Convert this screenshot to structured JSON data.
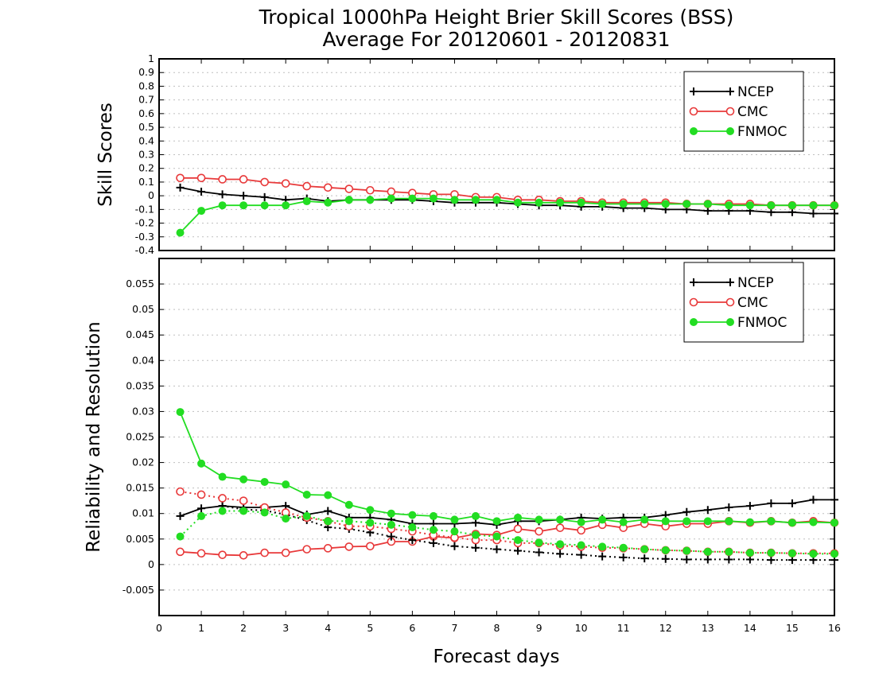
{
  "figure": {
    "title_line1": "Tropical 1000hPa Height Brier Skill Scores (BSS)",
    "title_line2": "Average For 20120601 - 20120831",
    "xlabel": "Forecast days"
  },
  "chart_data": [
    {
      "type": "line",
      "ylabel": "Skill Scores",
      "xlabel": "",
      "xlim": [
        0,
        16
      ],
      "ylim": [
        -0.4,
        1
      ],
      "x_ticks": [
        0,
        1,
        2,
        3,
        4,
        5,
        6,
        7,
        8,
        9,
        10,
        11,
        12,
        13,
        14,
        15,
        16
      ],
      "y_ticks": [
        -0.4,
        -0.3,
        -0.2,
        -0.1,
        0,
        0.1,
        0.2,
        0.3,
        0.4,
        0.5,
        0.6,
        0.7,
        0.8,
        0.9,
        1
      ],
      "y_tick_labels": [
        "-0.4",
        "-0.3",
        "-0.2",
        "-0.1",
        "0",
        "0.1",
        "0.2",
        "0.3",
        "0.4",
        "0.5",
        "0.6",
        "0.7",
        "0.8",
        "0.9",
        "1"
      ],
      "grid": true,
      "legend_position": "top-right",
      "x": [
        0.5,
        1,
        1.5,
        2,
        2.5,
        3,
        3.5,
        4,
        4.5,
        5,
        5.5,
        6,
        6.5,
        7,
        7.5,
        8,
        8.5,
        9,
        9.5,
        10,
        10.5,
        11,
        11.5,
        12,
        12.5,
        13,
        13.5,
        14,
        14.5,
        15,
        15.5,
        16
      ],
      "series": [
        {
          "name": "NCEP",
          "color": "#000000",
          "marker": "plus",
          "style": "solid",
          "values": [
            0.06,
            0.03,
            0.01,
            0.0,
            -0.01,
            -0.03,
            -0.02,
            -0.04,
            -0.03,
            -0.03,
            -0.03,
            -0.03,
            -0.04,
            -0.05,
            -0.05,
            -0.05,
            -0.06,
            -0.07,
            -0.07,
            -0.08,
            -0.08,
            -0.09,
            -0.09,
            -0.1,
            -0.1,
            -0.11,
            -0.11,
            -0.11,
            -0.12,
            -0.12,
            -0.13,
            -0.13
          ]
        },
        {
          "name": "CMC",
          "color": "#e8393a",
          "marker": "open-circle",
          "style": "solid",
          "values": [
            0.13,
            0.13,
            0.12,
            0.12,
            0.1,
            0.09,
            0.07,
            0.06,
            0.05,
            0.04,
            0.03,
            0.02,
            0.01,
            0.01,
            -0.01,
            -0.01,
            -0.03,
            -0.03,
            -0.04,
            -0.04,
            -0.05,
            -0.05,
            -0.05,
            -0.05,
            -0.06,
            -0.06,
            -0.06,
            -0.06,
            -0.07,
            -0.07,
            -0.07,
            -0.07
          ]
        },
        {
          "name": "FNMOC",
          "color": "#22dd22",
          "marker": "filled-circle",
          "style": "solid",
          "values": [
            -0.27,
            -0.11,
            -0.07,
            -0.07,
            -0.07,
            -0.07,
            -0.04,
            -0.05,
            -0.03,
            -0.03,
            -0.02,
            -0.02,
            -0.02,
            -0.03,
            -0.03,
            -0.03,
            -0.05,
            -0.05,
            -0.05,
            -0.05,
            -0.06,
            -0.06,
            -0.06,
            -0.06,
            -0.06,
            -0.06,
            -0.07,
            -0.07,
            -0.07,
            -0.07,
            -0.07,
            -0.07
          ]
        }
      ]
    },
    {
      "type": "line",
      "ylabel": "Reliability and Resolution",
      "xlabel": "Forecast days",
      "xlim": [
        0,
        16
      ],
      "ylim": [
        -0.01,
        0.06
      ],
      "x_ticks": [
        0,
        1,
        2,
        3,
        4,
        5,
        6,
        7,
        8,
        9,
        10,
        11,
        12,
        13,
        14,
        15,
        16
      ],
      "y_ticks": [
        -0.005,
        0,
        0.005,
        0.01,
        0.015,
        0.02,
        0.025,
        0.03,
        0.035,
        0.04,
        0.045,
        0.05,
        0.055
      ],
      "y_tick_labels": [
        "-0.005",
        "0",
        "0.005",
        "0.01",
        "0.015",
        "0.02",
        "0.025",
        "0.03",
        "0.035",
        "0.04",
        "0.045",
        "0.05",
        "0.055"
      ],
      "grid": true,
      "legend_position": "top-right",
      "x": [
        0.5,
        1,
        1.5,
        2,
        2.5,
        3,
        3.5,
        4,
        4.5,
        5,
        5.5,
        6,
        6.5,
        7,
        7.5,
        8,
        8.5,
        9,
        9.5,
        10,
        10.5,
        11,
        11.5,
        12,
        12.5,
        13,
        13.5,
        14,
        14.5,
        15,
        15.5,
        16
      ],
      "series": [
        {
          "name": "NCEP",
          "color": "#000000",
          "marker": "plus",
          "style": "solid",
          "values": [
            0.0095,
            0.011,
            0.0115,
            0.0112,
            0.0112,
            0.0115,
            0.0098,
            0.0105,
            0.0092,
            0.0092,
            0.0088,
            0.008,
            0.008,
            0.008,
            0.0082,
            0.0078,
            0.0085,
            0.0085,
            0.0088,
            0.0092,
            0.009,
            0.0092,
            0.0092,
            0.0097,
            0.0103,
            0.0107,
            0.0112,
            0.0115,
            0.012,
            0.012,
            0.0127,
            0.0127
          ]
        },
        {
          "name": "CMC",
          "color": "#e8393a",
          "marker": "open-circle",
          "style": "solid",
          "values": [
            0.0025,
            0.0022,
            0.0019,
            0.0018,
            0.0023,
            0.0023,
            0.003,
            0.0032,
            0.0035,
            0.0036,
            0.0045,
            0.0045,
            0.0055,
            0.0052,
            0.006,
            0.0058,
            0.007,
            0.0065,
            0.0072,
            0.0067,
            0.0078,
            0.0072,
            0.008,
            0.0075,
            0.008,
            0.008,
            0.0085,
            0.0082,
            0.0085,
            0.0082,
            0.0085,
            0.0082
          ]
        },
        {
          "name": "FNMOC",
          "color": "#22dd22",
          "marker": "filled-circle",
          "style": "solid",
          "values": [
            0.0299,
            0.0198,
            0.0172,
            0.0167,
            0.0162,
            0.0157,
            0.0137,
            0.0136,
            0.0117,
            0.0107,
            0.01,
            0.0097,
            0.0095,
            0.0088,
            0.0095,
            0.0085,
            0.0092,
            0.0088,
            0.0088,
            0.0083,
            0.0088,
            0.0083,
            0.0088,
            0.0085,
            0.0085,
            0.0085,
            0.0085,
            0.0083,
            0.0085,
            0.0082,
            0.0083,
            0.0082
          ]
        },
        {
          "name": "",
          "color": "#000000",
          "marker": "plus",
          "style": "dotted",
          "values": [
            null,
            null,
            0.0115,
            0.0108,
            0.0106,
            0.0098,
            0.0087,
            0.0073,
            0.007,
            0.0063,
            0.0055,
            0.0048,
            0.0042,
            0.0036,
            0.0033,
            0.003,
            0.0027,
            0.0024,
            0.0021,
            0.0019,
            0.0016,
            0.0014,
            0.0012,
            0.0011,
            0.001,
            0.001,
            0.001,
            0.001,
            0.0009,
            0.0009,
            0.0009,
            0.0009
          ]
        },
        {
          "name": "",
          "color": "#e8393a",
          "marker": "open-circle",
          "style": "dotted",
          "values": [
            0.0143,
            0.0137,
            0.013,
            0.0125,
            0.0112,
            0.0102,
            0.0092,
            0.0085,
            0.0075,
            0.0075,
            0.007,
            0.0065,
            0.0058,
            0.0053,
            0.0048,
            0.0048,
            0.0042,
            0.0042,
            0.0037,
            0.0035,
            0.0033,
            0.0032,
            0.003,
            0.0028,
            0.0027,
            0.0025,
            0.0025,
            0.0023,
            0.0023,
            0.0022,
            0.0022,
            0.0022
          ]
        },
        {
          "name": "",
          "color": "#22dd22",
          "marker": "filled-circle",
          "style": "dotted",
          "values": [
            0.0055,
            0.0095,
            0.0105,
            0.0105,
            0.0102,
            0.009,
            0.0095,
            0.0085,
            0.0085,
            0.0082,
            0.0078,
            0.0073,
            0.0068,
            0.0065,
            0.0058,
            0.0055,
            0.0048,
            0.0043,
            0.004,
            0.0038,
            0.0035,
            0.0033,
            0.003,
            0.0028,
            0.0027,
            0.0025,
            0.0025,
            0.0023,
            0.0023,
            0.0022,
            0.0021,
            0.0021
          ]
        }
      ]
    }
  ]
}
